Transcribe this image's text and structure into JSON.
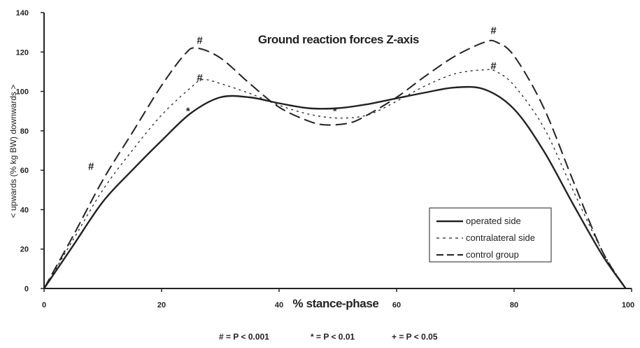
{
  "chart_data": {
    "type": "line",
    "title": "Ground reaction forces Z-axis",
    "xlabel": "% stance-phase",
    "ylabel": "< upwards (% kg BW) downwards >",
    "xlim": [
      0,
      100
    ],
    "ylim": [
      0,
      140
    ],
    "x_ticks": [
      "0",
      "20",
      "40",
      "60",
      "80",
      "100"
    ],
    "y_ticks": [
      "0",
      "20",
      "40",
      "60",
      "80",
      "100",
      "120",
      "140"
    ],
    "series": [
      {
        "name": "operated side",
        "style": "solid",
        "color": "#222222",
        "x": [
          0,
          5,
          10,
          15,
          20,
          25,
          30,
          35,
          40,
          45,
          50,
          55,
          60,
          65,
          70,
          75,
          80,
          85,
          90,
          95,
          99
        ],
        "y": [
          0,
          22,
          44,
          60,
          75,
          89,
          97,
          97,
          94,
          91.5,
          91.5,
          93.5,
          96.5,
          99.5,
          102,
          101,
          91,
          70,
          43,
          17,
          0
        ]
      },
      {
        "name": "contralateral side",
        "style": "dotted",
        "color": "#222222",
        "x": [
          0,
          5,
          10,
          15,
          20,
          25,
          27,
          30,
          35,
          40,
          45,
          50,
          55,
          60,
          65,
          70,
          75,
          77,
          80,
          85,
          90,
          95,
          99
        ],
        "y": [
          0,
          25,
          50,
          70,
          88,
          102,
          106,
          104,
          99,
          93,
          88.5,
          86.5,
          88,
          95,
          103,
          109,
          111,
          110,
          103,
          82,
          50,
          19,
          0
        ]
      },
      {
        "name": "control group",
        "style": "dashed",
        "color": "#222222",
        "x": [
          0,
          5,
          10,
          15,
          20,
          24,
          26,
          30,
          35,
          40,
          45,
          48,
          52,
          55,
          60,
          65,
          70,
          75,
          77,
          80,
          85,
          90,
          95,
          99
        ],
        "y": [
          0,
          27,
          55,
          79,
          103,
          119,
          122,
          117,
          104,
          92,
          85,
          83,
          84,
          88,
          97,
          108,
          118,
          125,
          125,
          118,
          92,
          55,
          19,
          0
        ]
      }
    ],
    "annotations": [
      {
        "text": "#",
        "x": 26.5,
        "y": 126
      },
      {
        "text": "#",
        "x": 26.5,
        "y": 107
      },
      {
        "text": "*",
        "x": 24.5,
        "y": 90
      },
      {
        "text": "#",
        "x": 8,
        "y": 62
      },
      {
        "text": "*",
        "x": 49.5,
        "y": 90
      },
      {
        "text": "#",
        "x": 76.5,
        "y": 131
      },
      {
        "text": "#",
        "x": 76.5,
        "y": 113
      }
    ],
    "legend": {
      "placement": "bottom-right",
      "entries": [
        "operated side",
        "contralateral side",
        "control group"
      ]
    },
    "footnote": [
      "# = P < 0.001",
      "* = P < 0.01",
      "+ = P < 0.05"
    ],
    "grid": false
  }
}
